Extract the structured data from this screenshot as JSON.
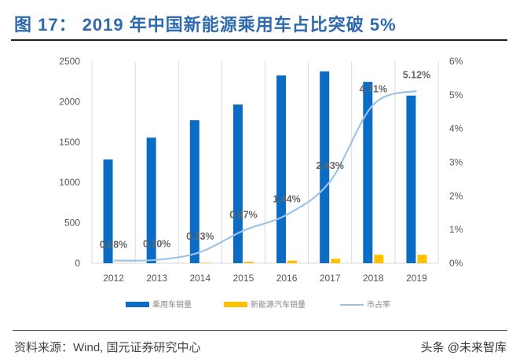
{
  "title": "图 17：  2019 年中国新能源乘用车占比突破 5%",
  "source": "资料来源：Wind, 国元证券研究中心",
  "watermark": "头条 @未来智库",
  "colors": {
    "title": "#2e6aad",
    "passenger": "#0a6cc4",
    "nev": "#ffc000",
    "share": "#9dc3e6",
    "grid": "#d9d9d9"
  },
  "chart_data": {
    "type": "bar+line",
    "categories": [
      "2012",
      "2013",
      "2014",
      "2015",
      "2016",
      "2017",
      "2018",
      "2019"
    ],
    "series": [
      {
        "name": "乘用车销量",
        "type": "bar",
        "axis": "left",
        "values": [
          1285,
          1555,
          1770,
          1965,
          2325,
          2375,
          2245,
          2075
        ]
      },
      {
        "name": "新能源汽车销量",
        "type": "bar",
        "axis": "left",
        "values": [
          1,
          1.5,
          6,
          18,
          32,
          55,
          105,
          105
        ]
      },
      {
        "name": "市占率",
        "type": "line",
        "axis": "right",
        "values": [
          0.08,
          0.1,
          0.33,
          0.97,
          1.44,
          2.43,
          4.71,
          5.12
        ],
        "labels": [
          "0.08%",
          "0.10%",
          "0.33%",
          "0.97%",
          "1.44%",
          "2.43%",
          "4.71%",
          "5.12%"
        ]
      }
    ],
    "y_left": {
      "ylim": [
        0,
        2500
      ],
      "ticks": [
        "0",
        "500",
        "1000",
        "1500",
        "2000",
        "2500"
      ]
    },
    "y_right": {
      "ylim": [
        0,
        6
      ],
      "ticks": [
        "0%",
        "1%",
        "2%",
        "3%",
        "4%",
        "5%",
        "6%"
      ]
    },
    "grid": "vertical",
    "legend": "bottom"
  }
}
